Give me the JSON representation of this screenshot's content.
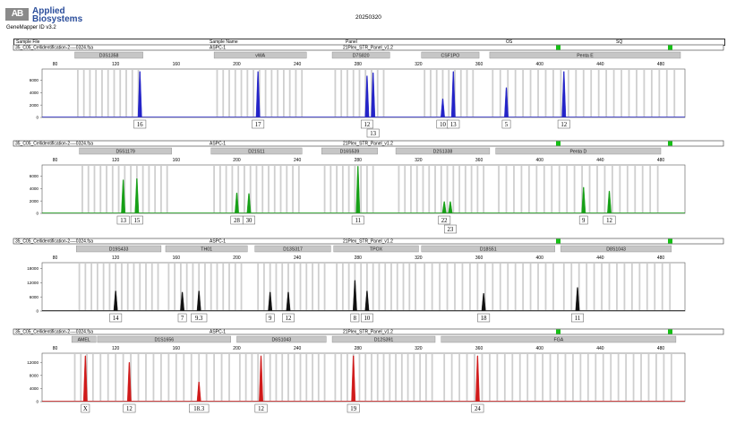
{
  "brand": {
    "badge": "AB",
    "line1": "Applied",
    "line2": "Biosystems"
  },
  "software": "GeneMapper ID v3.2",
  "run_date": "20250320",
  "header": {
    "sample_file": "Sample File",
    "sample_name": "Sample Name",
    "panel": "Panel",
    "os": "OS",
    "sq": "SQ"
  },
  "colors": {
    "blue": "#2323c8",
    "green": "#16a016",
    "black": "#111111",
    "red": "#d01a1a",
    "bin": "#cfcfcf",
    "locus_box": "#c6c6c6",
    "indicator": "#15c015"
  },
  "chart_data": [
    {
      "type": "line",
      "dye": "blue",
      "file_name": "35_C05_Cellidentification-2----0324.fsa",
      "sample_name": "ASPC-1",
      "panel": "21Plex_STR_Panel_v1.2",
      "x_ticks": [
        80,
        120,
        160,
        200,
        240,
        280,
        320,
        360,
        400,
        440,
        480
      ],
      "xlim": [
        72,
        493
      ],
      "y_ticks": [
        0,
        2000,
        4000,
        6000
      ],
      "ylim": [
        0,
        7800
      ],
      "loci": [
        {
          "name": "D3S1358",
          "start": 93,
          "end": 138
        },
        {
          "name": "vWA",
          "start": 185,
          "end": 246
        },
        {
          "name": "D7S820",
          "start": 263,
          "end": 301
        },
        {
          "name": "CSF1PO",
          "start": 322,
          "end": 360
        },
        {
          "name": "Penta E",
          "start": 367,
          "end": 493
        }
      ],
      "peaks": [
        {
          "x": 136,
          "y": 7400,
          "label": "16"
        },
        {
          "x": 214,
          "y": 7400,
          "label": "17"
        },
        {
          "x": 286,
          "y": 6700,
          "label": "12"
        },
        {
          "x": 290,
          "y": 7200,
          "label": "13"
        },
        {
          "x": 336,
          "y": 3000,
          "label": "10"
        },
        {
          "x": 343,
          "y": 7400,
          "label": "13"
        },
        {
          "x": 378,
          "y": 4800,
          "label": "5"
        },
        {
          "x": 416,
          "y": 7400,
          "label": "12"
        }
      ]
    },
    {
      "type": "line",
      "dye": "green",
      "file_name": "35_C05_Cellidentification-2----0324.fsa",
      "sample_name": "ASPC-1",
      "panel": "21Plex_STR_Panel_v1.2",
      "x_ticks": [
        80,
        120,
        160,
        200,
        240,
        280,
        320,
        360,
        400,
        440,
        480
      ],
      "xlim": [
        72,
        493
      ],
      "y_ticks": [
        0,
        2000,
        4000,
        6000
      ],
      "ylim": [
        0,
        7800
      ],
      "loci": [
        {
          "name": "D5S1179",
          "start": 96,
          "end": 157
        },
        {
          "name": "D21S11",
          "start": 183,
          "end": 243
        },
        {
          "name": "D16S539",
          "start": 256,
          "end": 293
        },
        {
          "name": "D2S1338",
          "start": 305,
          "end": 367
        },
        {
          "name": "Penta D",
          "start": 371,
          "end": 480
        }
      ],
      "peaks": [
        {
          "x": 125,
          "y": 5400,
          "label": "13"
        },
        {
          "x": 134,
          "y": 5600,
          "label": "15"
        },
        {
          "x": 200,
          "y": 3300,
          "label": "28"
        },
        {
          "x": 208,
          "y": 3200,
          "label": "30"
        },
        {
          "x": 280,
          "y": 7600,
          "label": "11"
        },
        {
          "x": 337,
          "y": 1900,
          "label": "22"
        },
        {
          "x": 341,
          "y": 1900,
          "label": "23"
        },
        {
          "x": 429,
          "y": 4200,
          "label": "9"
        },
        {
          "x": 446,
          "y": 3600,
          "label": "12"
        }
      ]
    },
    {
      "type": "line",
      "dye": "black",
      "file_name": "35_C05_Cellidentification-2----0324.fsa",
      "sample_name": "ASPC-1",
      "panel": "21Plex_STR_Panel_v1.2",
      "x_ticks": [
        80,
        120,
        160,
        200,
        240,
        280,
        320,
        360,
        400,
        440,
        480
      ],
      "xlim": [
        72,
        493
      ],
      "y_ticks": [
        0,
        6000,
        12000,
        18000
      ],
      "ylim": [
        0,
        20500
      ],
      "loci": [
        {
          "name": "D19S433",
          "start": 94,
          "end": 150
        },
        {
          "name": "TH01",
          "start": 153,
          "end": 207
        },
        {
          "name": "D13S317",
          "start": 212,
          "end": 262
        },
        {
          "name": "TPOX",
          "start": 264,
          "end": 320
        },
        {
          "name": "D18S51",
          "start": 322,
          "end": 410
        },
        {
          "name": "D8S1043",
          "start": 414,
          "end": 487
        }
      ],
      "peaks": [
        {
          "x": 120,
          "y": 8500,
          "label": "14"
        },
        {
          "x": 164,
          "y": 8000,
          "label": "7"
        },
        {
          "x": 175,
          "y": 8500,
          "label": "9.3"
        },
        {
          "x": 222,
          "y": 8000,
          "label": "9"
        },
        {
          "x": 234,
          "y": 8000,
          "label": "12"
        },
        {
          "x": 278,
          "y": 13000,
          "label": "8"
        },
        {
          "x": 286,
          "y": 8500,
          "label": "10"
        },
        {
          "x": 363,
          "y": 7500,
          "label": "18"
        },
        {
          "x": 425,
          "y": 10000,
          "label": "11"
        }
      ]
    },
    {
      "type": "line",
      "dye": "red",
      "file_name": "35_C05_Cellidentification-2----0324.fsa",
      "sample_name": "ASPC-1",
      "panel": "21Plex_STR_Panel_v1.2",
      "x_ticks": [
        80,
        120,
        160,
        200,
        240,
        280,
        320,
        360,
        400,
        440,
        480
      ],
      "xlim": [
        72,
        493
      ],
      "y_ticks": [
        0,
        4000,
        8000,
        12000
      ],
      "ylim": [
        0,
        14800
      ],
      "loci": [
        {
          "name": "AMEL",
          "start": 91,
          "end": 107
        },
        {
          "name": "D1S1656",
          "start": 108,
          "end": 196
        },
        {
          "name": "D6S1043",
          "start": 200,
          "end": 259
        },
        {
          "name": "D12S391",
          "start": 263,
          "end": 331
        },
        {
          "name": "FGA",
          "start": 335,
          "end": 490
        }
      ],
      "peaks": [
        {
          "x": 100,
          "y": 14000,
          "label": "X"
        },
        {
          "x": 129,
          "y": 12000,
          "label": "12"
        },
        {
          "x": 175,
          "y": 6000,
          "label": "18.3"
        },
        {
          "x": 216,
          "y": 14000,
          "label": "12"
        },
        {
          "x": 277,
          "y": 14000,
          "label": "19"
        },
        {
          "x": 359,
          "y": 14000,
          "label": "24"
        }
      ]
    }
  ]
}
